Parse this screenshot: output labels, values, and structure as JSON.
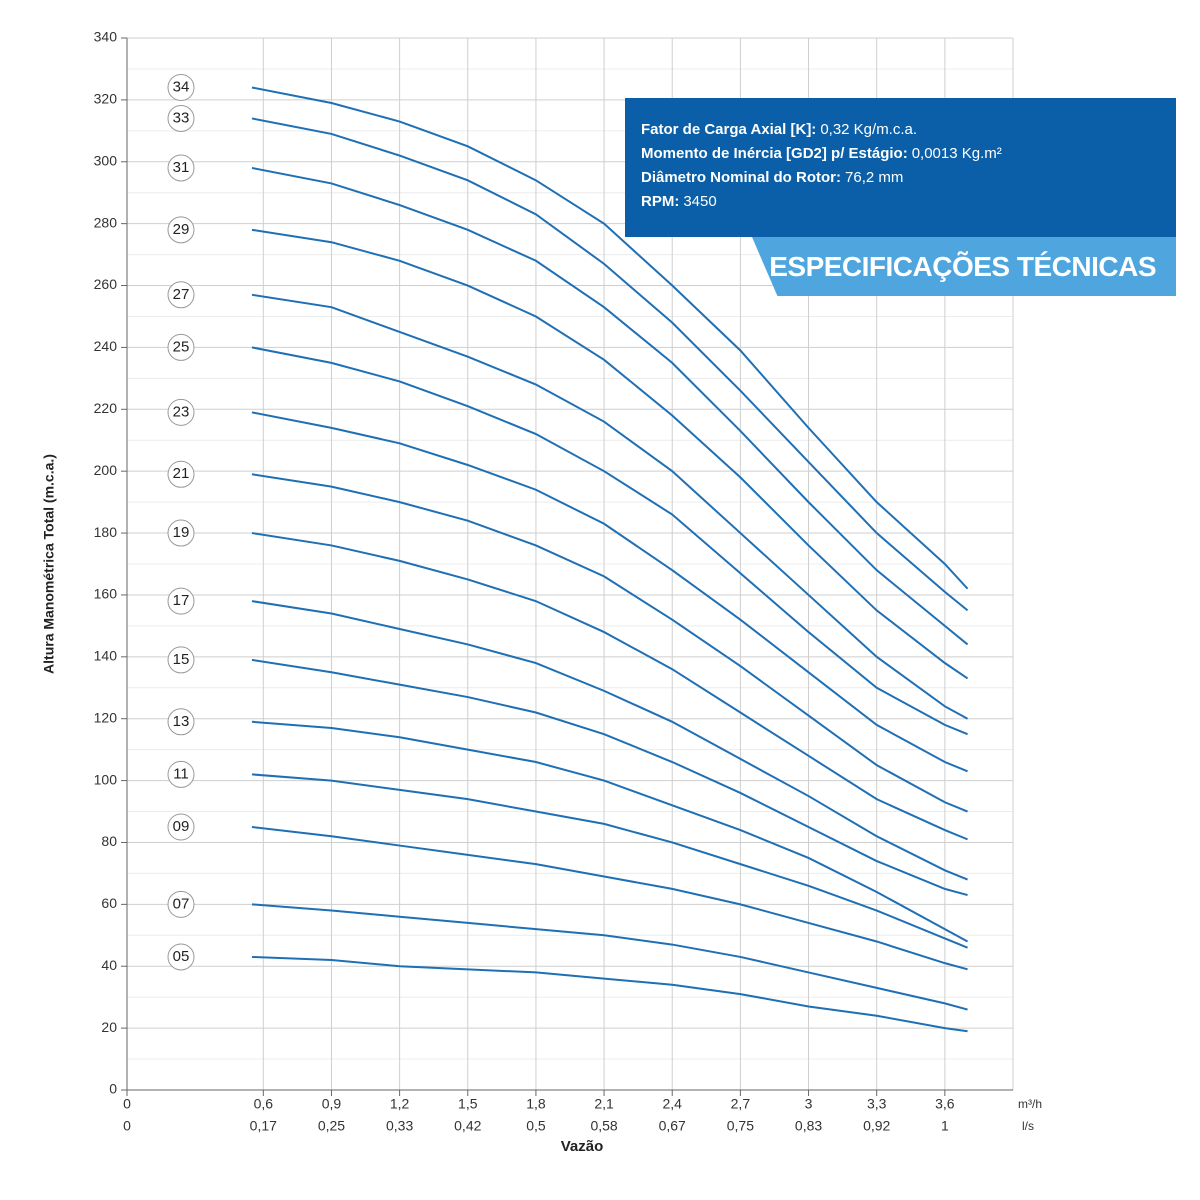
{
  "chart_data": {
    "type": "line",
    "y_label": "Altura Manométrica Total (m.c.a.)",
    "x_label": "Vazão",
    "x_units": [
      "m³/h",
      "l/s"
    ],
    "xlim": [
      0,
      3.9
    ],
    "ylim": [
      0,
      340
    ],
    "yticks": [
      0,
      20,
      40,
      60,
      80,
      100,
      120,
      140,
      160,
      180,
      200,
      220,
      240,
      260,
      280,
      300,
      320,
      340
    ],
    "xticks": [
      0,
      {
        "value": 0.6,
        "label": "0,6"
      },
      {
        "value": 0.9,
        "label": "0,9"
      },
      {
        "value": 1.2,
        "label": "1,2"
      },
      {
        "value": 1.5,
        "label": "1,5"
      },
      {
        "value": 1.8,
        "label": "1,8"
      },
      {
        "value": 2.1,
        "label": "2,1"
      },
      {
        "value": 2.4,
        "label": "2,4"
      },
      {
        "value": 2.7,
        "label": "2,7"
      },
      {
        "value": 3.0,
        "label": "3"
      },
      {
        "value": 3.3,
        "label": "3,3"
      },
      {
        "value": 3.6,
        "label": "3,6"
      }
    ],
    "x_secondary_labels": [
      "0",
      "0,17",
      "0,25",
      "0,33",
      "0,42",
      "0,5",
      "0,58",
      "0,67",
      "0,75",
      "0,83",
      "0,92",
      "1"
    ],
    "grid": true,
    "x": [
      0.55,
      0.9,
      1.2,
      1.5,
      1.8,
      2.1,
      2.4,
      2.7,
      3.0,
      3.3,
      3.6,
      3.7
    ],
    "series": [
      {
        "name": "34",
        "color": "#1f6fb5",
        "values": [
          324,
          319,
          313,
          305,
          294,
          280,
          260,
          239,
          214,
          190,
          170,
          162
        ]
      },
      {
        "name": "33",
        "color": "#1f6fb5",
        "values": [
          314,
          309,
          302,
          294,
          283,
          267,
          248,
          226,
          203,
          180,
          161,
          155
        ]
      },
      {
        "name": "31",
        "color": "#1f6fb5",
        "values": [
          298,
          293,
          286,
          278,
          268,
          253,
          235,
          213,
          190,
          168,
          150,
          144
        ]
      },
      {
        "name": "29",
        "color": "#1f6fb5",
        "values": [
          278,
          274,
          268,
          260,
          250,
          236,
          218,
          198,
          176,
          155,
          138,
          133
        ]
      },
      {
        "name": "27",
        "color": "#1f6fb5",
        "values": [
          257,
          253,
          245,
          237,
          228,
          216,
          200,
          180,
          160,
          140,
          124,
          120
        ]
      },
      {
        "name": "25",
        "color": "#1f6fb5",
        "values": [
          240,
          235,
          229,
          221,
          212,
          200,
          186,
          167,
          148,
          130,
          118,
          115
        ]
      },
      {
        "name": "23",
        "color": "#1f6fb5",
        "values": [
          219,
          214,
          209,
          202,
          194,
          183,
          168,
          152,
          135,
          118,
          106,
          103
        ]
      },
      {
        "name": "21",
        "color": "#1f6fb5",
        "values": [
          199,
          195,
          190,
          184,
          176,
          166,
          152,
          137,
          121,
          105,
          93,
          90
        ]
      },
      {
        "name": "19",
        "color": "#1f6fb5",
        "values": [
          180,
          176,
          171,
          165,
          158,
          148,
          136,
          122,
          108,
          94,
          84,
          81
        ]
      },
      {
        "name": "17",
        "color": "#1f6fb5",
        "values": [
          158,
          154,
          149,
          144,
          138,
          129,
          119,
          107,
          95,
          82,
          71,
          68
        ]
      },
      {
        "name": "15",
        "color": "#1f6fb5",
        "values": [
          139,
          135,
          131,
          127,
          122,
          115,
          106,
          96,
          85,
          74,
          65,
          63
        ]
      },
      {
        "name": "13",
        "color": "#1f6fb5",
        "values": [
          119,
          117,
          114,
          110,
          106,
          100,
          92,
          84,
          75,
          64,
          52,
          48
        ]
      },
      {
        "name": "11",
        "color": "#1f6fb5",
        "values": [
          102,
          100,
          97,
          94,
          90,
          86,
          80,
          73,
          66,
          58,
          49,
          46
        ]
      },
      {
        "name": "09",
        "color": "#1f6fb5",
        "values": [
          85,
          82,
          79,
          76,
          73,
          69,
          65,
          60,
          54,
          48,
          41,
          39
        ]
      },
      {
        "name": "07",
        "color": "#1f6fb5",
        "values": [
          60,
          58,
          56,
          54,
          52,
          50,
          47,
          43,
          38,
          33,
          28,
          26
        ]
      },
      {
        "name": "05",
        "color": "#1f6fb5",
        "values": [
          43,
          42,
          40,
          39,
          38,
          36,
          34,
          31,
          27,
          24,
          20,
          19
        ]
      }
    ],
    "specs": {
      "title": "ESPECIFICAÇÕES TÉCNICAS",
      "items": [
        {
          "label": "Fator de Carga Axial [K]:",
          "value": "0,32 Kg/m.c.a."
        },
        {
          "label": "Momento de Inércia [GD2] p/ Estágio:",
          "value": "0,0013 Kg.m²"
        },
        {
          "label": "Diâmetro Nominal do Rotor:",
          "value": "76,2 mm"
        },
        {
          "label": "RPM:",
          "value": "3450"
        }
      ]
    }
  }
}
